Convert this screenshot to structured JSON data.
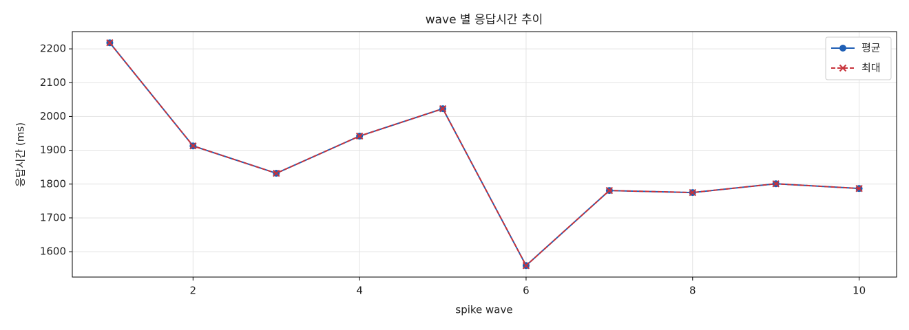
{
  "chart_data": {
    "type": "line",
    "title": "wave 별 응답시간 추이",
    "x_label": "spike wave",
    "y_label": "응답시간 (ms)",
    "x": [
      1,
      2,
      3,
      4,
      5,
      6,
      7,
      8,
      9,
      10
    ],
    "series": [
      {
        "name": "평균",
        "color": "#1f5fb5",
        "marker": "circle",
        "dash": false,
        "values": [
          2218,
          1913,
          1832,
          1942,
          2023,
          1559,
          1781,
          1775,
          1801,
          1787
        ]
      },
      {
        "name": "최대",
        "color": "#c8323a",
        "marker": "x",
        "dash": true,
        "values": [
          2218,
          1913,
          1832,
          1942,
          2023,
          1559,
          1781,
          1775,
          1801,
          1787
        ]
      }
    ],
    "xlim": [
      0.55,
      10.45
    ],
    "ylim": [
      1525,
      2251
    ],
    "xticks": [
      2,
      4,
      6,
      8,
      10
    ],
    "yticks": [
      1600,
      1700,
      1800,
      1900,
      2000,
      2100,
      2200
    ],
    "grid": true,
    "legend": "upper right"
  }
}
